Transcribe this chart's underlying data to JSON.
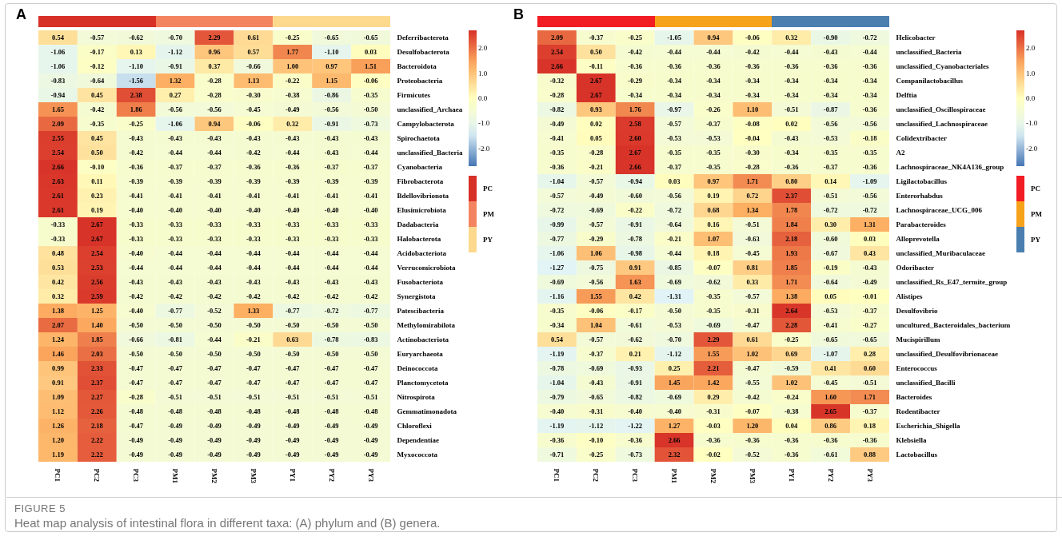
{
  "chart_data": [
    {
      "type": "heatmap",
      "title": "A",
      "categories": [
        "PC1",
        "PC2",
        "PC3",
        "PM1",
        "PM2",
        "PM3",
        "PY1",
        "PY2",
        "PY3"
      ],
      "y_categories": [
        "Deferribacterota",
        "Desulfobacterota",
        "Bacteroidota",
        "Proteobacteria",
        "Firmicutes",
        "unclassified_Archaea",
        "Campylobacterota",
        "Spirochaetota",
        "unclassified_Bacteria",
        "Cyanobacteria",
        "Fibrobacterota",
        "Bdellovibrionota",
        "Elusimicrobiota",
        "Dadabacteria",
        "Halobacterota",
        "Acidobacteriota",
        "Verrucomicrobiota",
        "Fusobacteriota",
        "Synergistota",
        "Patescibacteria",
        "Methylomirabilota",
        "Actinobacteriota",
        "Euryarchaeota",
        "Deinococcota",
        "Planctomycetota",
        "Nitrospirota",
        "Gemmatimonadota",
        "Chloroflexi",
        "Dependentiae",
        "Myxococcota"
      ],
      "cells": [
        [
          0.54,
          -0.57,
          -0.62,
          -0.7,
          2.29,
          0.61,
          -0.25,
          -0.65,
          -0.65
        ],
        [
          -1.06,
          -0.17,
          0.13,
          -1.12,
          0.96,
          0.57,
          1.77,
          -1.1,
          0.03
        ],
        [
          -1.06,
          -0.12,
          -1.1,
          -0.91,
          0.37,
          -0.66,
          1.0,
          0.97,
          1.51
        ],
        [
          -0.83,
          -0.64,
          -1.56,
          1.32,
          -0.28,
          1.13,
          -0.22,
          1.15,
          -0.06
        ],
        [
          -0.94,
          0.45,
          2.38,
          0.27,
          -0.28,
          -0.3,
          -0.38,
          -0.86,
          -0.35
        ],
        [
          1.65,
          -0.42,
          1.86,
          -0.56,
          -0.56,
          -0.45,
          -0.49,
          -0.56,
          -0.5
        ],
        [
          2.09,
          -0.35,
          -0.25,
          -1.06,
          0.94,
          -0.06,
          0.32,
          -0.91,
          -0.73
        ],
        [
          2.55,
          0.45,
          -0.43,
          -0.43,
          -0.43,
          -0.43,
          -0.43,
          -0.43,
          -0.43
        ],
        [
          2.54,
          0.5,
          -0.42,
          -0.44,
          -0.44,
          -0.42,
          -0.44,
          -0.43,
          -0.44
        ],
        [
          2.66,
          -0.1,
          -0.36,
          -0.37,
          -0.37,
          -0.36,
          -0.36,
          -0.37,
          -0.37
        ],
        [
          2.63,
          0.11,
          -0.39,
          -0.39,
          -0.39,
          -0.39,
          -0.39,
          -0.39,
          -0.39
        ],
        [
          2.61,
          0.23,
          -0.41,
          -0.41,
          -0.41,
          -0.41,
          -0.41,
          -0.41,
          -0.41
        ],
        [
          2.61,
          0.19,
          -0.4,
          -0.4,
          -0.4,
          -0.4,
          -0.4,
          -0.4,
          -0.4
        ],
        [
          -0.33,
          2.67,
          -0.33,
          -0.33,
          -0.33,
          -0.33,
          -0.33,
          -0.33,
          -0.33
        ],
        [
          -0.33,
          2.67,
          -0.33,
          -0.33,
          -0.33,
          -0.33,
          -0.33,
          -0.33,
          -0.33
        ],
        [
          0.48,
          2.54,
          -0.4,
          -0.44,
          -0.44,
          -0.44,
          -0.44,
          -0.44,
          -0.44
        ],
        [
          0.53,
          2.53,
          -0.44,
          -0.44,
          -0.44,
          -0.44,
          -0.44,
          -0.44,
          -0.44
        ],
        [
          0.42,
          2.56,
          -0.43,
          -0.43,
          -0.43,
          -0.43,
          -0.43,
          -0.43,
          -0.43
        ],
        [
          0.32,
          2.59,
          -0.42,
          -0.42,
          -0.42,
          -0.42,
          -0.42,
          -0.42,
          -0.42
        ],
        [
          1.38,
          1.25,
          -0.4,
          -0.77,
          -0.52,
          1.33,
          -0.77,
          -0.72,
          -0.77
        ],
        [
          2.07,
          1.4,
          -0.5,
          -0.5,
          -0.5,
          -0.5,
          -0.5,
          -0.5,
          -0.5
        ],
        [
          1.24,
          1.85,
          -0.66,
          -0.81,
          -0.44,
          -0.21,
          0.63,
          -0.78,
          -0.83
        ],
        [
          1.46,
          2.03,
          -0.5,
          -0.5,
          -0.5,
          -0.5,
          -0.5,
          -0.5,
          -0.5
        ],
        [
          0.99,
          2.33,
          -0.47,
          -0.47,
          -0.47,
          -0.47,
          -0.47,
          -0.47,
          -0.47
        ],
        [
          0.91,
          2.37,
          -0.47,
          -0.47,
          -0.47,
          -0.47,
          -0.47,
          -0.47,
          -0.47
        ],
        [
          1.09,
          2.27,
          -0.28,
          -0.51,
          -0.51,
          -0.51,
          -0.51,
          -0.51,
          -0.51
        ],
        [
          1.12,
          2.26,
          -0.48,
          -0.48,
          -0.48,
          -0.48,
          -0.48,
          -0.48,
          -0.48
        ],
        [
          1.26,
          2.18,
          -0.47,
          -0.49,
          -0.49,
          -0.49,
          -0.49,
          -0.49,
          -0.49
        ],
        [
          1.2,
          2.22,
          -0.49,
          -0.49,
          -0.49,
          -0.49,
          -0.49,
          -0.49,
          -0.49
        ],
        [
          1.19,
          2.22,
          -0.49,
          -0.49,
          -0.49,
          -0.49,
          -0.49,
          -0.49,
          -0.49
        ]
      ],
      "cell_labels": [
        [
          "0.54",
          "-0.57",
          "-0.62",
          "-0.70",
          "2.29",
          "0.61",
          "-0.25",
          "-0.65",
          "-0.65"
        ],
        [
          "-1.06",
          "-0.17",
          "0.13",
          "-1.12",
          "0.96",
          "0.57",
          "1.77",
          "-1.10",
          "0.03"
        ],
        [
          "-1.06",
          "-0.12",
          "-1.10",
          "-0.91",
          "0.37",
          "-0.66",
          "1.00",
          "0.97",
          "1.51"
        ],
        [
          "-0.83",
          "-0.64",
          "-1.56",
          "1.32",
          "-0.28",
          "1.13",
          "-0.22",
          "1.15",
          "-0.06"
        ],
        [
          "-0.94",
          "0.45",
          "2.38",
          "0.27",
          "-0.28",
          "-0.30",
          "-0.38",
          "-0.86",
          "-0.35"
        ],
        [
          "1.65",
          "-0.42",
          "1.86",
          "-0.56",
          "-0.56",
          "-0.45",
          "-0.49",
          "-0.56",
          "-0.50"
        ],
        [
          "2.09",
          "-0.35",
          "-0.25",
          "-1.06",
          "0.94",
          "-0.06",
          "0.32",
          "-0.91",
          "-0.73"
        ],
        [
          "2.55",
          "0.45",
          "-0.43",
          "-0.43",
          "-0.43",
          "-0.43",
          "-0.43",
          "-0.43",
          "-0.43"
        ],
        [
          "2.54",
          "0.50",
          "-0.42",
          "-0.44",
          "-0.44",
          "-0.42",
          "-0.44",
          "-0.43",
          "-0.44"
        ],
        [
          "2.66",
          "-0.10",
          "-0.36",
          "-0.37",
          "-0.37",
          "-0.36",
          "-0.36",
          "-0.37",
          "-0.37"
        ],
        [
          "2.63",
          "0.11",
          "-0.39",
          "-0.39",
          "-0.39",
          "-0.39",
          "-0.39",
          "-0.39",
          "-0.39"
        ],
        [
          "2.61",
          "0.23",
          "-0.41",
          "-0.41",
          "-0.41",
          "-0.41",
          "-0.41",
          "-0.41",
          "-0.41"
        ],
        [
          "2.61",
          "0.19",
          "-0.40",
          "-0.40",
          "-0.40",
          "-0.40",
          "-0.40",
          "-0.40",
          "-0.40"
        ],
        [
          "-0.33",
          "2.67",
          "-0.33",
          "-0.33",
          "-0.33",
          "-0.33",
          "-0.33",
          "-0.33",
          "-0.33"
        ],
        [
          "-0.33",
          "2.67",
          "-0.33",
          "-0.33",
          "-0.33",
          "-0.33",
          "-0.33",
          "-0.33",
          "-0.33"
        ],
        [
          "0.48",
          "2.54",
          "-0.40",
          "-0.44",
          "-0.44",
          "-0.44",
          "-0.44",
          "-0.44",
          "-0.44"
        ],
        [
          "0.53",
          "2.53",
          "-0.44",
          "-0.44",
          "-0.44",
          "-0.44",
          "-0.44",
          "-0.44",
          "-0.44"
        ],
        [
          "0.42",
          "2.56",
          "-0.43",
          "-0.43",
          "-0.43",
          "-0.43",
          "-0.43",
          "-0.43",
          "-0.43"
        ],
        [
          "0.32",
          "2.59",
          "-0.42",
          "-0.42",
          "-0.42",
          "-0.42",
          "-0.42",
          "-0.42",
          "-0.42"
        ],
        [
          "1.38",
          "1.25",
          "-0.40",
          "-0.77",
          "-0.52",
          "1.33",
          "-0.77",
          "-0.72",
          "-0.77"
        ],
        [
          "2.07",
          "1.40",
          "-0.50",
          "-0.50",
          "-0.50",
          "-0.50",
          "-0.50",
          "-0.50",
          "-0.50"
        ],
        [
          "1.24",
          "1.85",
          "-0.66",
          "-0.81",
          "-0.44",
          "-0.21",
          "0.63",
          "-0.78",
          "-0.83"
        ],
        [
          "1.46",
          "2.03",
          "-0.50",
          "-0.50",
          "-0.50",
          "-0.50",
          "-0.50",
          "-0.50",
          "-0.50"
        ],
        [
          "0.99",
          "2.33",
          "-0.47",
          "-0.47",
          "-0.47",
          "-0.47",
          "-0.47",
          "-0.47",
          "-0.47"
        ],
        [
          "0.91",
          "2.37",
          "-0.47",
          "-0.47",
          "-0.47",
          "-0.47",
          "-0.47",
          "-0.47",
          "-0.47"
        ],
        [
          "1.09",
          "2.27",
          "-0.28",
          "-0.51",
          "-0.51",
          "-0.51",
          "-0.51",
          "-0.51",
          "-0.51"
        ],
        [
          "1.12",
          "2.26",
          "-0.48",
          "-0.48",
          "-0.48",
          "-0.48",
          "-0.48",
          "-0.48",
          "-0.48"
        ],
        [
          "1.26",
          "2.18",
          "-0.47",
          "-0.49",
          "-0.49",
          "-0.49",
          "-0.49",
          "-0.49",
          "-0.49"
        ],
        [
          "1.20",
          "2.22",
          "-0.49",
          "-0.49",
          "-0.49",
          "-0.49",
          "-0.49",
          "-0.49",
          "-0.49"
        ],
        [
          "1.19",
          "2.22",
          "-0.49",
          "-0.49",
          "-0.49",
          "-0.49",
          "-0.49",
          "-0.49",
          "-0.49"
        ]
      ],
      "clim": [
        -2.7,
        2.7
      ],
      "cticks": [
        {
          "value": 2,
          "label": "2.0"
        },
        {
          "value": 1,
          "label": "1.0"
        },
        {
          "value": 0,
          "label": "0.0"
        },
        {
          "value": -1,
          "label": "-1.0"
        },
        {
          "value": -2,
          "label": "-2.0"
        }
      ],
      "data_labels": true,
      "annotations": [
        "PC",
        "PM",
        "PY",
        "FIGURE 5",
        "Heat map analysis of intestinal flora in different taxa: (A) phylum and (B) genera."
      ]
    },
    {
      "type": "heatmap",
      "title": "B",
      "categories": [
        "PC1",
        "PC2",
        "PC3",
        "PM1",
        "PM2",
        "PM3",
        "PY1",
        "PY2",
        "PY3"
      ],
      "y_categories": [
        "Helicobacter",
        "unclassified_Bacteria",
        "unclassified_Cyanobacteriales",
        "Companilactobacillus",
        "Delftia",
        "unclassified_Oscillospiraceae",
        "unclassified_Lachnospiraceae",
        "Colidextribacter",
        "A2",
        "Lachnospiraceae_NK4A136_group",
        "Ligilactobacillus",
        "Enterorhabdus",
        "Lachnospiraceae_UCG_006",
        "Parabacteroides",
        "Alloprevotella",
        "unclassified_Muribaculaceae",
        "Odoribacter",
        "unclassified_Rs_E47_termite_group",
        "Alistipes",
        "Desulfovibrio",
        "uncultured_Bacteroidales_bacterium",
        "Mucispirillum",
        "unclassified_Desulfovibrionaceae",
        "Enterococcus",
        "unclassified_Bacilli",
        "Bacteroides",
        "Rodentibacter",
        "Escherichia_Shigella",
        "Klebsiella",
        "Lactobacillus"
      ],
      "cells": [
        [
          2.09,
          -0.37,
          -0.25,
          -1.05,
          0.94,
          -0.06,
          0.32,
          -0.9,
          -0.72
        ],
        [
          2.54,
          0.5,
          -0.42,
          -0.44,
          -0.44,
          -0.42,
          -0.44,
          -0.43,
          -0.44
        ],
        [
          2.66,
          -0.11,
          -0.36,
          -0.36,
          -0.36,
          -0.36,
          -0.36,
          -0.36,
          -0.36
        ],
        [
          -0.32,
          2.67,
          -0.29,
          -0.34,
          -0.34,
          -0.34,
          -0.34,
          -0.34,
          -0.34
        ],
        [
          -0.28,
          2.67,
          -0.34,
          -0.34,
          -0.34,
          -0.34,
          -0.34,
          -0.34,
          -0.34
        ],
        [
          -0.82,
          0.93,
          1.76,
          -0.97,
          -0.26,
          1.1,
          -0.51,
          -0.87,
          -0.36
        ],
        [
          -0.49,
          0.02,
          2.58,
          -0.57,
          -0.37,
          -0.08,
          0.02,
          -0.56,
          -0.56
        ],
        [
          -0.41,
          0.05,
          2.6,
          -0.53,
          -0.53,
          -0.04,
          -0.43,
          -0.53,
          -0.18
        ],
        [
          -0.35,
          -0.28,
          2.67,
          -0.35,
          -0.35,
          -0.3,
          -0.34,
          -0.35,
          -0.35
        ],
        [
          -0.36,
          -0.21,
          2.66,
          -0.37,
          -0.35,
          -0.28,
          -0.36,
          -0.37,
          -0.36
        ],
        [
          -1.04,
          -0.57,
          -0.94,
          0.03,
          0.97,
          1.71,
          0.8,
          0.14,
          -1.09
        ],
        [
          -0.57,
          -0.49,
          -0.6,
          -0.56,
          0.19,
          0.72,
          2.37,
          -0.51,
          -0.56
        ],
        [
          -0.72,
          -0.69,
          -0.22,
          -0.72,
          0.68,
          1.34,
          1.78,
          -0.72,
          -0.72
        ],
        [
          -0.99,
          -0.57,
          -0.91,
          -0.64,
          0.16,
          -0.51,
          1.84,
          0.3,
          1.31
        ],
        [
          -0.77,
          -0.29,
          -0.78,
          -0.21,
          1.07,
          -0.63,
          2.18,
          -0.6,
          0.03
        ],
        [
          -1.06,
          1.06,
          -0.98,
          -0.44,
          0.18,
          -0.45,
          1.93,
          -0.67,
          0.43
        ],
        [
          -1.27,
          -0.75,
          0.91,
          -0.85,
          -0.07,
          0.81,
          1.85,
          -0.19,
          -0.43
        ],
        [
          -0.69,
          -0.56,
          1.63,
          -0.69,
          -0.62,
          0.33,
          1.71,
          -0.64,
          -0.49
        ],
        [
          -1.16,
          1.55,
          0.42,
          -1.31,
          -0.35,
          -0.57,
          1.38,
          0.05,
          -0.01
        ],
        [
          -0.35,
          -0.06,
          -0.17,
          -0.5,
          -0.35,
          -0.31,
          2.64,
          -0.53,
          -0.37
        ],
        [
          -0.34,
          1.04,
          -0.61,
          -0.53,
          -0.69,
          -0.47,
          2.28,
          -0.41,
          -0.27
        ],
        [
          0.54,
          -0.57,
          -0.62,
          -0.7,
          2.29,
          0.61,
          -0.25,
          -0.65,
          -0.65
        ],
        [
          -1.19,
          -0.37,
          0.21,
          -1.12,
          1.55,
          1.02,
          0.69,
          -1.07,
          0.28
        ],
        [
          -0.78,
          -0.69,
          -0.93,
          0.25,
          2.21,
          -0.47,
          -0.59,
          0.41,
          0.6
        ],
        [
          -1.04,
          -0.43,
          -0.91,
          1.45,
          1.42,
          -0.55,
          1.02,
          -0.45,
          -0.51
        ],
        [
          -0.79,
          -0.65,
          -0.82,
          -0.69,
          0.29,
          -0.42,
          -0.24,
          1.6,
          1.71
        ],
        [
          -0.4,
          -0.31,
          -0.4,
          -0.4,
          -0.31,
          -0.07,
          -0.38,
          2.65,
          -0.37
        ],
        [
          -1.19,
          -1.12,
          -1.22,
          1.27,
          -0.03,
          1.2,
          0.04,
          0.86,
          0.18
        ],
        [
          -0.36,
          -0.1,
          -0.36,
          2.66,
          -0.36,
          -0.36,
          -0.36,
          -0.36,
          -0.36
        ],
        [
          -0.71,
          -0.25,
          -0.73,
          2.32,
          -0.02,
          -0.52,
          -0.36,
          -0.61,
          0.88
        ]
      ],
      "cell_labels": [
        [
          "2.09",
          "-0.37",
          "-0.25",
          "-1.05",
          "0.94",
          "-0.06",
          "0.32",
          "-0.90",
          "-0.72"
        ],
        [
          "2.54",
          "0.50",
          "-0.42",
          "-0.44",
          "-0.44",
          "-0.42",
          "-0.44",
          "-0.43",
          "-0.44"
        ],
        [
          "2.66",
          "-0.11",
          "-0.36",
          "-0.36",
          "-0.36",
          "-0.36",
          "-0.36",
          "-0.36",
          "-0.36"
        ],
        [
          "-0.32",
          "2.67",
          "-0.29",
          "-0.34",
          "-0.34",
          "-0.34",
          "-0.34",
          "-0.34",
          "-0.34"
        ],
        [
          "-0.28",
          "2.67",
          "-0.34",
          "-0.34",
          "-0.34",
          "-0.34",
          "-0.34",
          "-0.34",
          "-0.34"
        ],
        [
          "-0.82",
          "0.93",
          "1.76",
          "-0.97",
          "-0.26",
          "1.10",
          "-0.51",
          "-0.87",
          "-0.36"
        ],
        [
          "-0.49",
          "0.02",
          "2.58",
          "-0.57",
          "-0.37",
          "-0.08",
          "0.02",
          "-0.56",
          "-0.56"
        ],
        [
          "-0.41",
          "0.05",
          "2.60",
          "-0.53",
          "-0.53",
          "-0.04",
          "-0.43",
          "-0.53",
          "-0.18"
        ],
        [
          "-0.35",
          "-0.28",
          "2.67",
          "-0.35",
          "-0.35",
          "-0.30",
          "-0.34",
          "-0.35",
          "-0.35"
        ],
        [
          "-0.36",
          "-0.21",
          "2.66",
          "-0.37",
          "-0.35",
          "-0.28",
          "-0.36",
          "-0.37",
          "-0.36"
        ],
        [
          "-1.04",
          "-0.57",
          "-0.94",
          "0.03",
          "0.97",
          "1.71",
          "0.80",
          "0.14",
          "-1.09"
        ],
        [
          "-0.57",
          "-0.49",
          "-0.60",
          "-0.56",
          "0.19",
          "0.72",
          "2.37",
          "-0.51",
          "-0.56"
        ],
        [
          "-0.72",
          "-0.69",
          "-0.22",
          "-0.72",
          "0.68",
          "1.34",
          "1.78",
          "-0.72",
          "-0.72"
        ],
        [
          "-0.99",
          "-0.57",
          "-0.91",
          "-0.64",
          "0.16",
          "-0.51",
          "1.84",
          "0.30",
          "1.31"
        ],
        [
          "-0.77",
          "-0.29",
          "-0.78",
          "-0.21",
          "1.07",
          "-0.63",
          "2.18",
          "-0.60",
          "0.03"
        ],
        [
          "-1.06",
          "1.06",
          "-0.98",
          "-0.44",
          "0.18",
          "-0.45",
          "1.93",
          "-0.67",
          "0.43"
        ],
        [
          "-1.27",
          "-0.75",
          "0.91",
          "-0.85",
          "-0.07",
          "0.81",
          "1.85",
          "-0.19",
          "-0.43"
        ],
        [
          "-0.69",
          "-0.56",
          "1.63",
          "-0.69",
          "-0.62",
          "0.33",
          "1.71",
          "-0.64",
          "-0.49"
        ],
        [
          "-1.16",
          "1.55",
          "0.42",
          "-1.31",
          "-0.35",
          "-0.57",
          "1.38",
          "0.05",
          "-0.01"
        ],
        [
          "-0.35",
          "-0.06",
          "-0.17",
          "-0.50",
          "-0.35",
          "-0.31",
          "2.64",
          "-0.53",
          "-0.37"
        ],
        [
          "-0.34",
          "1.04",
          "-0.61",
          "-0.53",
          "-0.69",
          "-0.47",
          "2.28",
          "-0.41",
          "-0.27"
        ],
        [
          "0.54",
          "-0.57",
          "-0.62",
          "-0.70",
          "2.29",
          "0.61",
          "-0.25",
          "-0.65",
          "-0.65"
        ],
        [
          "-1.19",
          "-0.37",
          "0.21",
          "-1.12",
          "1.55",
          "1.02",
          "0.69",
          "-1.07",
          "0.28"
        ],
        [
          "-0.78",
          "-0.69",
          "-0.93",
          "0.25",
          "2.21",
          "-0.47",
          "-0.59",
          "0.41",
          "0.60"
        ],
        [
          "-1.04",
          "-0.43",
          "-0.91",
          "1.45",
          "1.42",
          "-0.55",
          "1.02",
          "-0.45",
          "-0.51"
        ],
        [
          "-0.79",
          "-0.65",
          "-0.82",
          "-0.69",
          "0.29",
          "-0.42",
          "-0.24",
          "1.60",
          "1.71"
        ],
        [
          "-0.40",
          "-0.31",
          "-0.40",
          "-0.40",
          "-0.31",
          "-0.07",
          "-0.38",
          "2.65",
          "-0.37"
        ],
        [
          "-1.19",
          "-1.12",
          "-1.22",
          "1.27",
          "-0.03",
          "1.20",
          "0.04",
          "0.86",
          "0.18"
        ],
        [
          "-0.36",
          "-0.10",
          "-0.36",
          "2.66",
          "-0.36",
          "-0.36",
          "-0.36",
          "-0.36",
          "-0.36"
        ],
        [
          "-0.71",
          "-0.25",
          "-0.73",
          "2.32",
          "-0.02",
          "-0.52",
          "-0.36",
          "-0.61",
          "0.88"
        ]
      ],
      "clim": [
        -2.7,
        2.7
      ],
      "cticks": [
        {
          "value": 2,
          "label": "2.0"
        },
        {
          "value": 1,
          "label": "1.0"
        },
        {
          "value": 0,
          "label": "0.0"
        },
        {
          "value": -1,
          "label": "-1.0"
        },
        {
          "value": -2,
          "label": "-2.0"
        }
      ],
      "data_labels": true,
      "annotations": [
        "PC",
        "PM",
        "PY"
      ]
    }
  ]
}
